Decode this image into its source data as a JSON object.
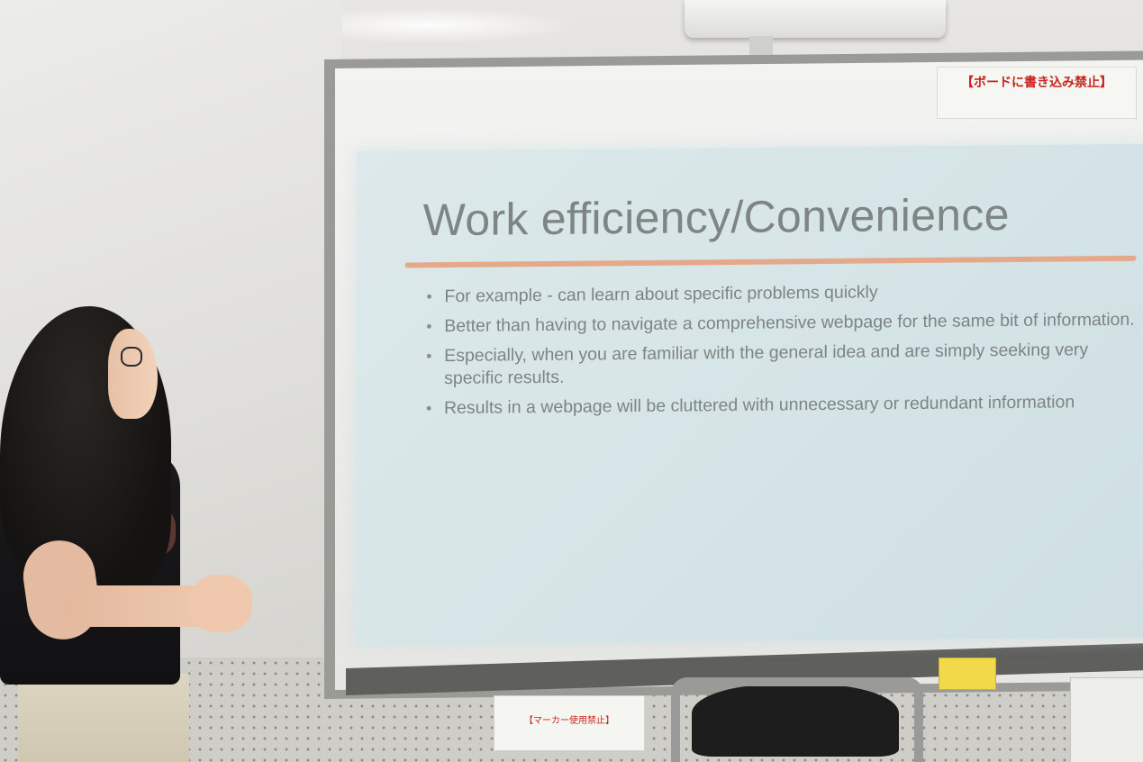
{
  "slide": {
    "title": "Work efficiency/Convenience",
    "bullets": [
      "For example - can learn about specific problems quickly",
      "Better than having to navigate a comprehensive webpage for the same bit of information.",
      "Especially, when you are familiar with the general idea and are simply seeking very specific results.",
      "Results in a webpage will be cluttered with unnecessary or redundant information"
    ],
    "accent_color": "#e6a27f",
    "text_color": "#7e8483"
  },
  "signs": {
    "top_notice": "【ボードに書き込み禁止】",
    "bottom_notice": "【マーカー使用禁止】"
  }
}
